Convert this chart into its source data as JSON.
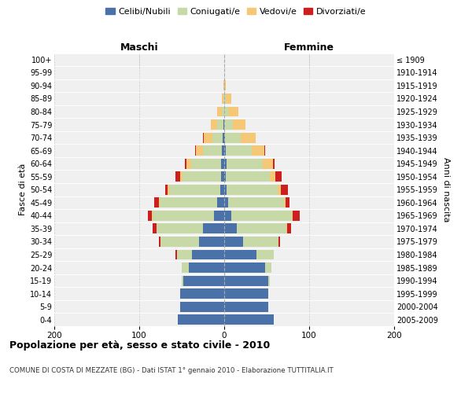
{
  "age_groups": [
    "0-4",
    "5-9",
    "10-14",
    "15-19",
    "20-24",
    "25-29",
    "30-34",
    "35-39",
    "40-44",
    "45-49",
    "50-54",
    "55-59",
    "60-64",
    "65-69",
    "70-74",
    "75-79",
    "80-84",
    "85-89",
    "90-94",
    "95-99",
    "100+"
  ],
  "birth_years": [
    "2005-2009",
    "2000-2004",
    "1995-1999",
    "1990-1994",
    "1985-1989",
    "1980-1984",
    "1975-1979",
    "1970-1974",
    "1965-1969",
    "1960-1964",
    "1955-1959",
    "1950-1954",
    "1945-1949",
    "1940-1944",
    "1935-1939",
    "1930-1934",
    "1925-1929",
    "1920-1924",
    "1915-1919",
    "1910-1914",
    "≤ 1909"
  ],
  "colors": {
    "celibi": "#4a72a8",
    "coniugati": "#c8d9a8",
    "vedovi": "#f5c878",
    "divorziati": "#cc2020"
  },
  "male": {
    "celibi": [
      55,
      52,
      52,
      48,
      42,
      38,
      30,
      25,
      12,
      8,
      5,
      4,
      4,
      3,
      2,
      1,
      0,
      0,
      0,
      0,
      0
    ],
    "coniugati": [
      0,
      0,
      0,
      2,
      8,
      18,
      45,
      55,
      72,
      68,
      60,
      45,
      35,
      22,
      12,
      7,
      3,
      1,
      0,
      0,
      0
    ],
    "vedovi": [
      0,
      0,
      0,
      0,
      0,
      0,
      0,
      0,
      1,
      1,
      2,
      3,
      5,
      8,
      10,
      8,
      5,
      2,
      1,
      0,
      0
    ],
    "divorziati": [
      0,
      0,
      0,
      0,
      0,
      1,
      2,
      4,
      5,
      5,
      2,
      5,
      2,
      1,
      1,
      0,
      0,
      0,
      0,
      0,
      0
    ]
  },
  "female": {
    "nubili": [
      58,
      52,
      52,
      52,
      48,
      38,
      22,
      15,
      8,
      5,
      3,
      2,
      3,
      2,
      1,
      0,
      0,
      0,
      0,
      0,
      0
    ],
    "coniugate": [
      0,
      0,
      0,
      2,
      8,
      20,
      42,
      58,
      72,
      65,
      60,
      52,
      42,
      30,
      18,
      10,
      5,
      2,
      0,
      0,
      0
    ],
    "vedove": [
      0,
      0,
      0,
      0,
      0,
      0,
      0,
      1,
      1,
      2,
      4,
      6,
      12,
      15,
      18,
      15,
      12,
      6,
      2,
      0,
      0
    ],
    "divorziate": [
      0,
      0,
      0,
      0,
      0,
      0,
      2,
      5,
      8,
      5,
      8,
      8,
      2,
      1,
      0,
      0,
      0,
      0,
      0,
      0,
      0
    ]
  },
  "xlim": 200,
  "title": "Popolazione per età, sesso e stato civile - 2010",
  "subtitle": "COMUNE DI COSTA DI MEZZATE (BG) - Dati ISTAT 1° gennaio 2010 - Elaborazione TUTTITALIA.IT",
  "ylabel_left": "Fasce di età",
  "ylabel_right": "Anni di nascita",
  "legend_labels": [
    "Celibi/Nubili",
    "Coniugati/e",
    "Vedovi/e",
    "Divorziati/e"
  ],
  "maschi_label": "Maschi",
  "femmine_label": "Femmine",
  "background_color": "#ffffff",
  "plot_bg_color": "#f0f0f0"
}
